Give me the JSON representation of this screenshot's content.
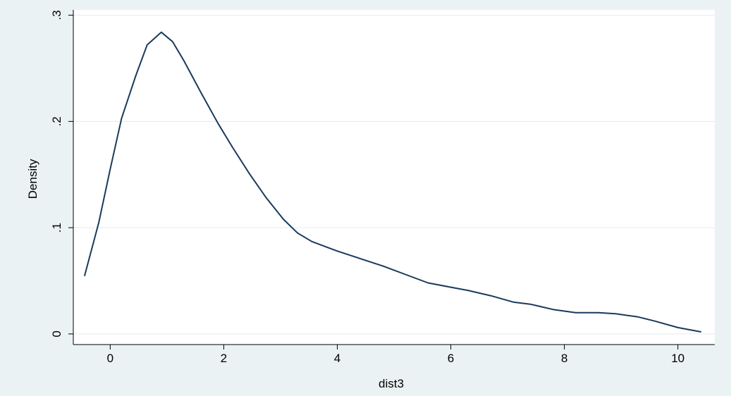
{
  "chart_data": {
    "type": "line",
    "title": "",
    "xlabel": "dist3",
    "ylabel": "Density",
    "xlim": [
      -0.65,
      10.65
    ],
    "ylim": [
      -0.01,
      0.305
    ],
    "xticks": [
      0,
      2,
      4,
      6,
      8,
      10
    ],
    "xtick_labels": [
      "0",
      "2",
      "4",
      "6",
      "8",
      "10"
    ],
    "yticks": [
      0,
      0.1,
      0.2,
      0.3
    ],
    "ytick_labels": [
      "0",
      ".1",
      ".2",
      ".3"
    ],
    "grid": true,
    "legend": "none",
    "series": [
      {
        "color": "#1a3a5c",
        "x": [
          -0.45,
          -0.2,
          0.0,
          0.2,
          0.45,
          0.65,
          0.9,
          1.1,
          1.3,
          1.6,
          1.9,
          2.15,
          2.45,
          2.75,
          3.05,
          3.3,
          3.55,
          3.8,
          4.0,
          4.4,
          4.8,
          5.2,
          5.6,
          6.0,
          6.3,
          6.7,
          7.1,
          7.4,
          7.8,
          8.2,
          8.6,
          8.9,
          9.3,
          9.6,
          10.0,
          10.4
        ],
        "y": [
          0.055,
          0.105,
          0.155,
          0.203,
          0.243,
          0.272,
          0.284,
          0.275,
          0.257,
          0.227,
          0.198,
          0.176,
          0.151,
          0.128,
          0.108,
          0.095,
          0.087,
          0.082,
          0.078,
          0.071,
          0.064,
          0.056,
          0.048,
          0.044,
          0.041,
          0.036,
          0.03,
          0.028,
          0.023,
          0.02,
          0.02,
          0.019,
          0.016,
          0.012,
          0.006,
          0.002
        ]
      }
    ]
  }
}
